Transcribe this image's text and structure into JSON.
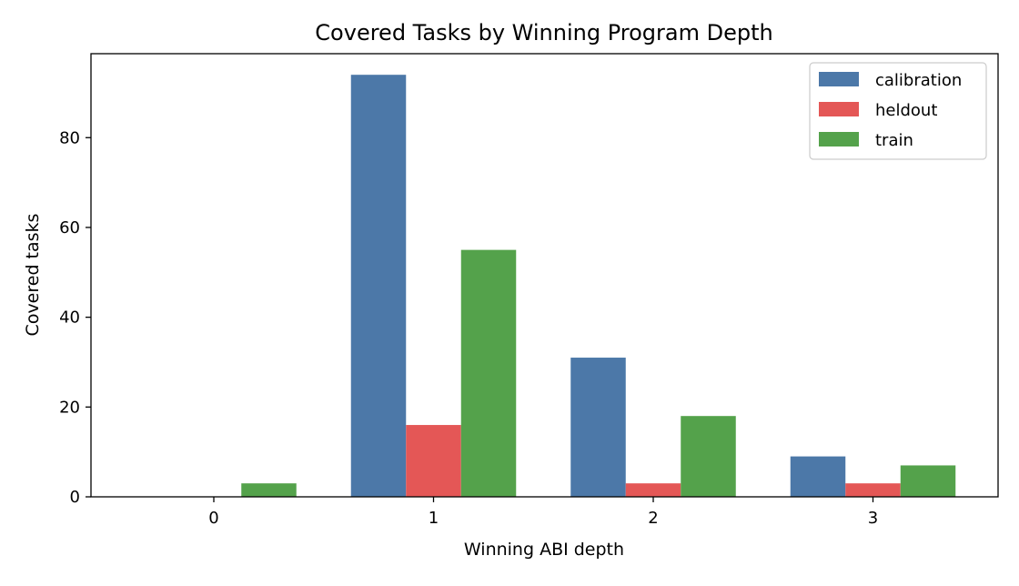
{
  "chart_data": {
    "type": "bar",
    "title": "Covered Tasks by Winning Program Depth",
    "xlabel": "Winning ABI depth",
    "ylabel": "Covered tasks",
    "categories": [
      "0",
      "1",
      "2",
      "3"
    ],
    "ylim": [
      0,
      98.7
    ],
    "yticks": [
      0,
      20,
      40,
      60,
      80
    ],
    "grid": false,
    "legend_position": "top-right",
    "series": [
      {
        "name": "calibration",
        "color": "#4c78a8",
        "values": [
          0,
          94,
          31,
          9
        ]
      },
      {
        "name": "heldout",
        "color": "#e45756",
        "values": [
          0,
          16,
          3,
          3
        ]
      },
      {
        "name": "train",
        "color": "#54a24b",
        "values": [
          3,
          55,
          18,
          7
        ]
      }
    ]
  }
}
